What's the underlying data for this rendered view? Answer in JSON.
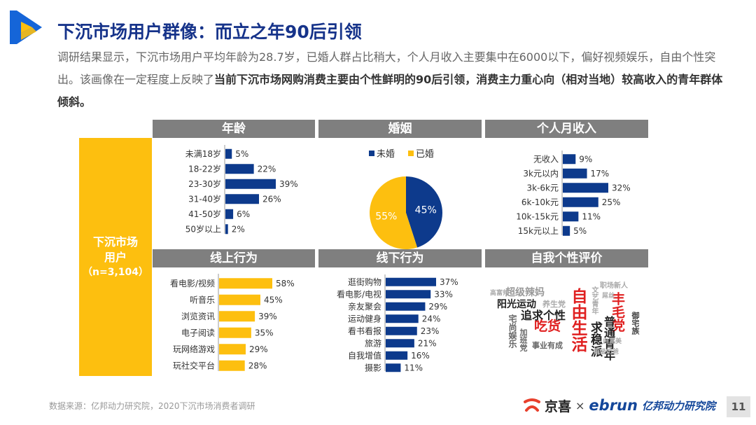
{
  "title": "下沉市场用户群像：而立之年90后引领",
  "intro": {
    "text_plain": "调研结果显示，下沉市场用户平均年龄为28.7岁，已婚人群占比稍大，个人月收入主要集中在6000以下，偏好视频娱乐，自由个性突出。该画像在一定程度上反映了",
    "text_bold": "当前下沉市场网购消费主要由个性鲜明的90后引领，消费主力重心向（相对当地）较高收入的青年群体倾斜。"
  },
  "side": {
    "line1": "下沉市场",
    "line2": "用户",
    "line3": "（n=3,104）"
  },
  "colors": {
    "navy": "#0d3a8c",
    "gold": "#fdbf0f",
    "header": "#7f7f7f",
    "side": "#fdbf0f",
    "title": "#16338a"
  },
  "chart_data": [
    {
      "type": "bar",
      "title": "年龄",
      "categories": [
        "未满18岁",
        "18-22岁",
        "23-30岁",
        "31-40岁",
        "41-50岁",
        "50岁以上"
      ],
      "values": [
        5,
        22,
        39,
        26,
        6,
        2
      ],
      "unit": "%",
      "color": "#0d3a8c"
    },
    {
      "type": "pie",
      "title": "婚姻",
      "labels": [
        "未婚",
        "已婚"
      ],
      "values": [
        45,
        55
      ],
      "unit": "%",
      "colors": [
        "#0d3a8c",
        "#fdbf0f"
      ],
      "legend": "top"
    },
    {
      "type": "bar",
      "title": "个人月收入",
      "categories": [
        "无收入",
        "3k元以内",
        "3k-6k元",
        "6k-10k元",
        "10k-15k元",
        "15k元以上"
      ],
      "values": [
        9,
        17,
        32,
        25,
        11,
        5
      ],
      "unit": "%",
      "color": "#0d3a8c"
    },
    {
      "type": "bar",
      "title": "线上行为",
      "categories": [
        "看电影/视频",
        "听音乐",
        "浏览资讯",
        "电子阅读",
        "玩网络游戏",
        "玩社交平台"
      ],
      "values": [
        58,
        45,
        39,
        35,
        29,
        28
      ],
      "unit": "%",
      "color": "#fdbf0f"
    },
    {
      "type": "bar",
      "title": "线下行为",
      "categories": [
        "逛街购物",
        "看电影/电视",
        "亲友聚会",
        "运动健身",
        "看书看报",
        "旅游",
        "自我增值",
        "摄影"
      ],
      "values": [
        37,
        33,
        29,
        24,
        23,
        21,
        16,
        11
      ],
      "unit": "%",
      "color": "#0d3a8c"
    }
  ],
  "wordcloud": {
    "title": "自我个性评价",
    "words": [
      "自由生活",
      "吃货",
      "丰毛党",
      "求稳派",
      "普通青年",
      "追求个性",
      "阳光运动",
      "超级辣妈",
      "养生党",
      "宅尚娱乐",
      "加班党",
      "事业有成",
      "文艺青年",
      "职场新人",
      "御宅族",
      "高富帅",
      "屌丝",
      "白富美",
      "超级奶爸"
    ]
  },
  "footer": {
    "source": "数据来源：亿邦动力研究院，2020下沉市场消费者调研"
  },
  "brand": {
    "jingxi": "京喜",
    "times": "×",
    "ebrun": "ebrun",
    "yibang": "亿邦动力研究院"
  },
  "page_number": "11"
}
